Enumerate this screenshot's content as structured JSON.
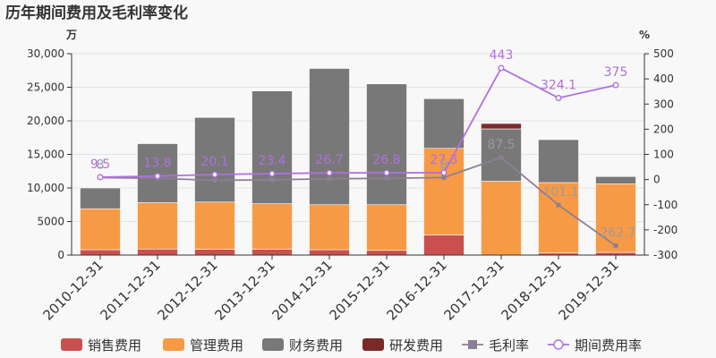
{
  "chart_data": {
    "type": "bar",
    "title": "历年期间费用及毛利率变化",
    "left_unit": "万",
    "right_unit": "%",
    "categories": [
      "2010-12-31",
      "2011-12-31",
      "2012-12-31",
      "2013-12-31",
      "2014-12-31",
      "2015-12-31",
      "2016-12-31",
      "2017-12-31",
      "2018-12-31",
      "2019-12-31"
    ],
    "ylim_left": [
      0,
      30000
    ],
    "yticks_left": [
      "0",
      "5000",
      "10,000",
      "15,000",
      "20,000",
      "25,000",
      "30,000"
    ],
    "ylim_right": [
      -300,
      500
    ],
    "yticks_right": [
      "-300",
      "-200",
      "-100",
      "0",
      "100",
      "200",
      "300",
      "400",
      "500"
    ],
    "stacked_series": [
      {
        "name": "销售费用",
        "color": "#c9504f",
        "values": [
          800,
          900,
          850,
          850,
          800,
          700,
          3000,
          0,
          300,
          400
        ]
      },
      {
        "name": "管理费用",
        "color": "#f79a46",
        "values": [
          6100,
          6900,
          7050,
          6800,
          6700,
          6800,
          12900,
          11000,
          10500,
          10200
        ]
      },
      {
        "name": "财务费用",
        "color": "#787878",
        "values": [
          3100,
          8800,
          12600,
          16800,
          20300,
          18000,
          7400,
          7800,
          6400,
          1100
        ]
      },
      {
        "name": "研发费用",
        "color": "#7b2a2a",
        "values": [
          0,
          0,
          0,
          0,
          0,
          0,
          0,
          800,
          0,
          0
        ]
      }
    ],
    "line_series": [
      {
        "name": "毛利率",
        "color": "#8c7f94",
        "axis": "right",
        "marker": "square",
        "values": [
          8,
          5,
          -3,
          -1,
          3,
          5,
          8,
          87.5,
          -101.1,
          -262.7
        ],
        "labels": [
          "8",
          "",
          "",
          "",
          "",
          "",
          "8",
          "87.5",
          "-101.1",
          "-262.7"
        ]
      },
      {
        "name": "期间费用率",
        "color": "#b070e0",
        "axis": "right",
        "marker": "circle",
        "values": [
          9.5,
          13.8,
          20.1,
          23.4,
          26.7,
          26.8,
          27.3,
          443,
          324.1,
          375
        ],
        "labels": [
          "9.5",
          "13.8",
          "20.1",
          "23.4",
          "26.7",
          "26.8",
          "27.3",
          "443",
          "324.1",
          "375"
        ]
      }
    ],
    "legend_position": "bottom"
  }
}
